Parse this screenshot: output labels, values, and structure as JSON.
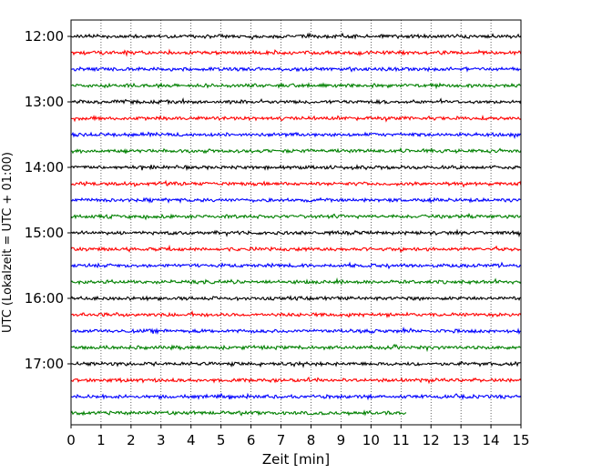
{
  "chart_data": {
    "type": "line",
    "title": "",
    "xlabel": "Zeit  [min]",
    "ylabel": "UTC (Lokalzeit = UTC + 01:00)",
    "xlim": [
      0,
      15
    ],
    "x_ticks": [
      "0",
      "1",
      "2",
      "3",
      "4",
      "5",
      "6",
      "7",
      "8",
      "9",
      "10",
      "11",
      "12",
      "13",
      "14",
      "15"
    ],
    "y_ticks": [
      "12:00",
      "13:00",
      "14:00",
      "15:00",
      "16:00",
      "17:00"
    ],
    "grid": "vertical dotted",
    "legend": "none",
    "trace_interval_minutes": 15,
    "colors": [
      "#000000",
      "#ff0000",
      "#0000ff",
      "#008000"
    ],
    "traces": [
      {
        "start": "12:00",
        "color": "#000000",
        "duration_min": 15
      },
      {
        "start": "12:15",
        "color": "#ff0000",
        "duration_min": 15
      },
      {
        "start": "12:30",
        "color": "#0000ff",
        "duration_min": 15
      },
      {
        "start": "12:45",
        "color": "#008000",
        "duration_min": 15
      },
      {
        "start": "13:00",
        "color": "#000000",
        "duration_min": 15
      },
      {
        "start": "13:15",
        "color": "#ff0000",
        "duration_min": 15
      },
      {
        "start": "13:30",
        "color": "#0000ff",
        "duration_min": 15
      },
      {
        "start": "13:45",
        "color": "#008000",
        "duration_min": 15
      },
      {
        "start": "14:00",
        "color": "#000000",
        "duration_min": 15
      },
      {
        "start": "14:15",
        "color": "#ff0000",
        "duration_min": 15
      },
      {
        "start": "14:30",
        "color": "#0000ff",
        "duration_min": 15
      },
      {
        "start": "14:45",
        "color": "#008000",
        "duration_min": 15
      },
      {
        "start": "15:00",
        "color": "#000000",
        "duration_min": 15
      },
      {
        "start": "15:15",
        "color": "#ff0000",
        "duration_min": 15
      },
      {
        "start": "15:30",
        "color": "#0000ff",
        "duration_min": 15
      },
      {
        "start": "15:45",
        "color": "#008000",
        "duration_min": 15
      },
      {
        "start": "16:00",
        "color": "#000000",
        "duration_min": 15
      },
      {
        "start": "16:15",
        "color": "#ff0000",
        "duration_min": 15
      },
      {
        "start": "16:30",
        "color": "#0000ff",
        "duration_min": 15
      },
      {
        "start": "16:45",
        "color": "#008000",
        "duration_min": 15
      },
      {
        "start": "17:00",
        "color": "#000000",
        "duration_min": 15
      },
      {
        "start": "17:15",
        "color": "#ff0000",
        "duration_min": 15
      },
      {
        "start": "17:30",
        "color": "#0000ff",
        "duration_min": 15
      },
      {
        "start": "17:45",
        "color": "#008000",
        "duration_min": 11.2
      }
    ]
  }
}
